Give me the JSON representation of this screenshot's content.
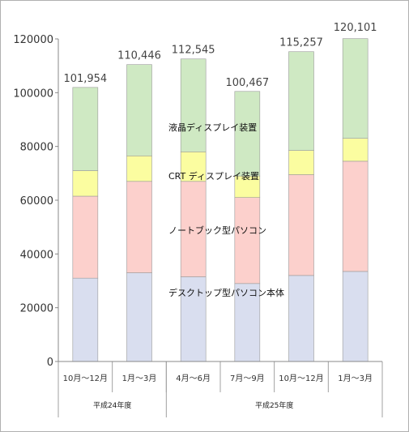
{
  "colors": {
    "desktop": "#d9deef",
    "notebook": "#fcd0cc",
    "crt": "#fbfda0",
    "lcd": "#cfe9c3",
    "highlight": "#e01010",
    "axis": "#888888"
  },
  "chart_data": {
    "type": "bar",
    "stacked": true,
    "ylim": [
      0,
      120000
    ],
    "yticks": [
      0,
      20000,
      40000,
      60000,
      80000,
      100000,
      120000
    ],
    "yticks_labels": [
      "0",
      "20000",
      "40000",
      "60000",
      "80000",
      "100000",
      "120000"
    ],
    "categories": [
      "10月～12月",
      "1月～3月",
      "4月～6月",
      "7月～9月",
      "10月～12月",
      "1月～3月"
    ],
    "groups": [
      {
        "label": "平成24年度",
        "span": 2
      },
      {
        "label": "平成25年度",
        "span": 4
      }
    ],
    "series": [
      {
        "name": "デスクトップ型パソコン本体",
        "color_key": "desktop",
        "values": [
          31000,
          33000,
          31500,
          29000,
          32000,
          33500
        ]
      },
      {
        "name": "ノートブック型パソコン",
        "color_key": "notebook",
        "values": [
          30500,
          34000,
          35500,
          32000,
          37500,
          41000
        ]
      },
      {
        "name": "CRT ディスプレイ装置",
        "color_key": "crt",
        "values": [
          9500,
          9500,
          11000,
          8000,
          9000,
          8500
        ]
      },
      {
        "name": "液晶ディスプレイ装置",
        "color_key": "lcd",
        "values": [
          30954,
          33946,
          34545,
          31467,
          36757,
          37101
        ]
      }
    ],
    "totals": [
      "101,954",
      "110,446",
      "112,545",
      "100,467",
      "115,257",
      "120,101"
    ],
    "highlight_index": 5
  }
}
